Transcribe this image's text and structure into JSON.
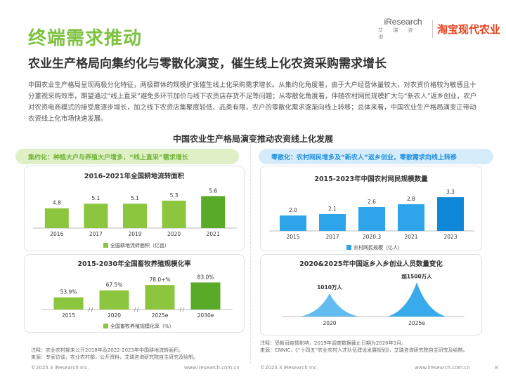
{
  "header": {
    "title": "终端需求推动",
    "logo_iresearch": "iResearch",
    "logo_iresearch_sub": "艾 瑞 咨 询",
    "logo_partner": "淘宝现代农业"
  },
  "subtitle": "农业生产格局向集约化与零散化演变，催生线上化农资采购需求增长",
  "intro": "中国农业生产格局呈现两极分化特征，两极群体的规模扩张催生线上化采购需求增长。从集约化角度看，由于大户经营体量较大，对农资价格较为敏感且十分重视采购效率，期望通过“线上直采”避免多环节加价与线下农资店存货不足等问题；从零散化角度看，伴随农村网民规模扩大与“新农人”返乡创业，农户对农资电商模式的接受度逐步增长，加之线下农资店集聚度较低、品类有限，农户的零散化需求逐渐向线上转移；总体来看，中国农业生产格局演变正带动农资线上化市场快速发展。",
  "main_title": "中国农业生产格局演变推动农资线上化发展",
  "banners": {
    "left": "集约化：种植大户与养殖大户增多，“线上直采”需求增长",
    "right": "零散化：农村网民增多及“新农人”返乡创业，零散需求向线上转移"
  },
  "colors": {
    "green_accent": "#7dc241",
    "green_bar": "#8cc63f",
    "green_last": "#5aaa2a",
    "blue_bar": "#2ea5ea",
    "blue_last": "#1088da",
    "blue_mountain": "#2ea5ea"
  },
  "chart_data": [
    {
      "type": "bar",
      "title": "2016-2021年全国耕地流转面积",
      "categories": [
        "2016",
        "2017",
        "2019",
        "2020",
        "2021"
      ],
      "values": [
        4.8,
        5.1,
        5.1,
        5.3,
        5.6
      ],
      "value_labels": [
        "4.8",
        "5.1",
        "5.1",
        "5.3",
        "5.6"
      ],
      "legend": "全国耕地流转面积（亿亩）"
    },
    {
      "type": "bar",
      "title": "2015-2030年全国畜牧养殖规模化率",
      "categories": [
        "2015",
        "2020",
        "2025e",
        "2030e"
      ],
      "values": [
        53.9,
        67.5,
        78.0,
        83.0
      ],
      "value_labels": [
        "53.9%",
        "67.5%",
        "78.0+%",
        "83.0%"
      ],
      "legend": "全国畜牧养殖规模化率（%）"
    },
    {
      "type": "bar",
      "title": "2015-2023年中国农村网民规模数量",
      "categories": [
        "2015",
        "2017",
        "2020.3",
        "2021",
        "2023"
      ],
      "values": [
        2.0,
        2.1,
        2.6,
        2.8,
        3.3
      ],
      "value_labels": [
        "2.0",
        "2.1",
        "2.6",
        "2.8",
        "3.3"
      ],
      "legend": "农村网民规模（亿人）"
    },
    {
      "type": "area",
      "title": "2020&2025年中国返乡入乡创业人员数量变化",
      "categories": [
        "2020",
        "2025e"
      ],
      "values": [
        1010,
        1500
      ],
      "value_labels": [
        "1010万人",
        "超1500万人"
      ]
    }
  ],
  "notes": {
    "left": "注释：农业农村部未公开2018年及2022-2023年中国耕地流转面积。\n来源：专家访谈，农业农村部，公开资料，艾瑞咨询研究院自主研究及绘制。",
    "right": "注释：受新冠疫情影响，2019年调查数据截止日期为2020年3月。\n来源：CNNIC，《“十四五”农业农村人才队伍建设发展规划》，艾瑞咨询研究院自主研究及绘制。"
  },
  "footer": {
    "copyright": "©2025.3 iResearch Inc.",
    "url": "www.iresearch.com.cn",
    "page": "8"
  }
}
